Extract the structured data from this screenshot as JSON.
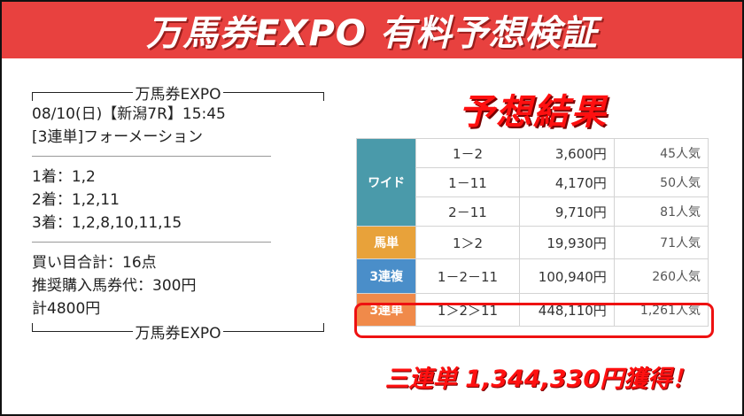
{
  "header": {
    "title": "万馬券EXPO 有料予想検証"
  },
  "prediction": {
    "brand": "万馬券EXPO",
    "race_line": "08/10(日)【新潟7R】15:45",
    "bet_type": "[3連単]フォーメーション",
    "picks": [
      "1着：1,2",
      "2着：1,2,11",
      "3着：1,2,8,10,11,15"
    ],
    "summary": [
      "買い目合計：16点",
      "推奨購入馬券代：300円",
      "計4800円"
    ]
  },
  "result": {
    "title": "予想結果",
    "rows": [
      {
        "category": "ワイド",
        "entries": [
          {
            "combo": "1－2",
            "payout": "3,600円",
            "popularity": "45人気"
          },
          {
            "combo": "1－11",
            "payout": "4,170円",
            "popularity": "50人気"
          },
          {
            "combo": "2－11",
            "payout": "9,710円",
            "popularity": "81人気"
          }
        ]
      },
      {
        "category": "馬単",
        "entries": [
          {
            "combo": "1＞2",
            "payout": "19,930円",
            "popularity": "71人気"
          }
        ]
      },
      {
        "category": "3連複",
        "entries": [
          {
            "combo": "1－2－11",
            "payout": "100,940円",
            "popularity": "260人気"
          }
        ]
      },
      {
        "category": "3連単",
        "entries": [
          {
            "combo": "1＞2＞11",
            "payout": "448,110円",
            "popularity": "1,261人気"
          }
        ]
      }
    ],
    "total": "三連単 1,344,330円獲得！"
  },
  "colors": {
    "header": "#e8413f",
    "wide": "#4a9aaa",
    "umatan": "#e8a23a",
    "sanpuku": "#4a8ec9",
    "santan": "#f08a4a",
    "accent": "#ff1010"
  }
}
